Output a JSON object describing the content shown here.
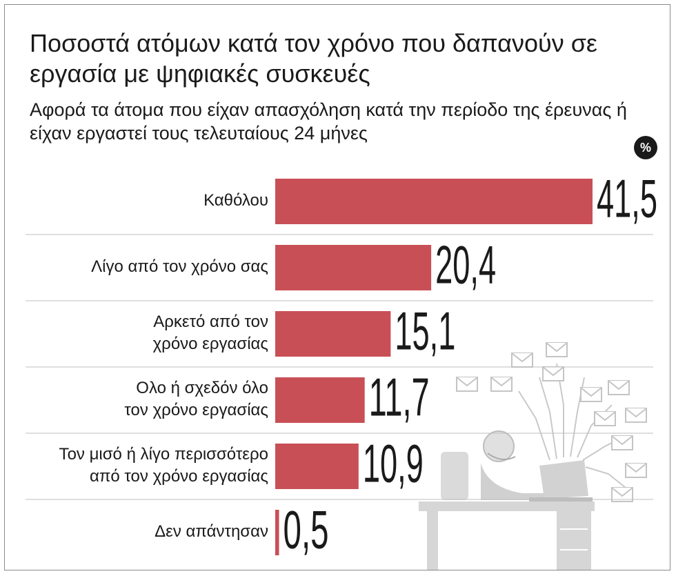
{
  "header": {
    "title": "Ποσοστά ατόμων κατά τον χρόνο που δαπανούν σε εργασία με ψηφιακές συσκευές",
    "subtitle": "Αφορά τα άτομα που είχαν απασχόληση κατά την περίοδο της έρευνας ή είχαν εργαστεί τους τελευταίους 24 μήνες",
    "unit_badge": "%"
  },
  "chart_data": {
    "type": "bar",
    "orientation": "horizontal",
    "title": "Ποσοστά ατόμων κατά τον χρόνο που δαπανούν σε εργασία με ψηφιακές συσκευές",
    "subtitle": "Αφορά τα άτομα που είχαν απασχόληση κατά την περίοδο της έρευνας ή είχαν εργαστεί τους τελευταίους 24 μήνες",
    "unit": "%",
    "categories": [
      [
        "Καθόλου"
      ],
      [
        "Λίγο από τον χρόνο σας"
      ],
      [
        "Αρκετό από τον",
        "χρόνο εργασίας"
      ],
      [
        "Ολο ή σχεδόν όλο",
        "τον χρόνο εργασίας"
      ],
      [
        "Τον μισό ή λίγο περισσότερο",
        "από τον χρόνο εργασίας"
      ],
      [
        "Δεν απάντησαν"
      ]
    ],
    "values": [
      41.5,
      20.4,
      15.1,
      11.7,
      10.9,
      0.5
    ],
    "value_labels": [
      "41,5",
      "20,4",
      "15,1",
      "11,7",
      "10,9",
      "0,5"
    ],
    "xlim": [
      0,
      41.5
    ],
    "grid": false,
    "legend": "none",
    "colors": {
      "bar": "#c94f56",
      "separator": "#bfbfbf",
      "text": "#1a1a1a",
      "illustration": "#cfcfcf"
    }
  }
}
